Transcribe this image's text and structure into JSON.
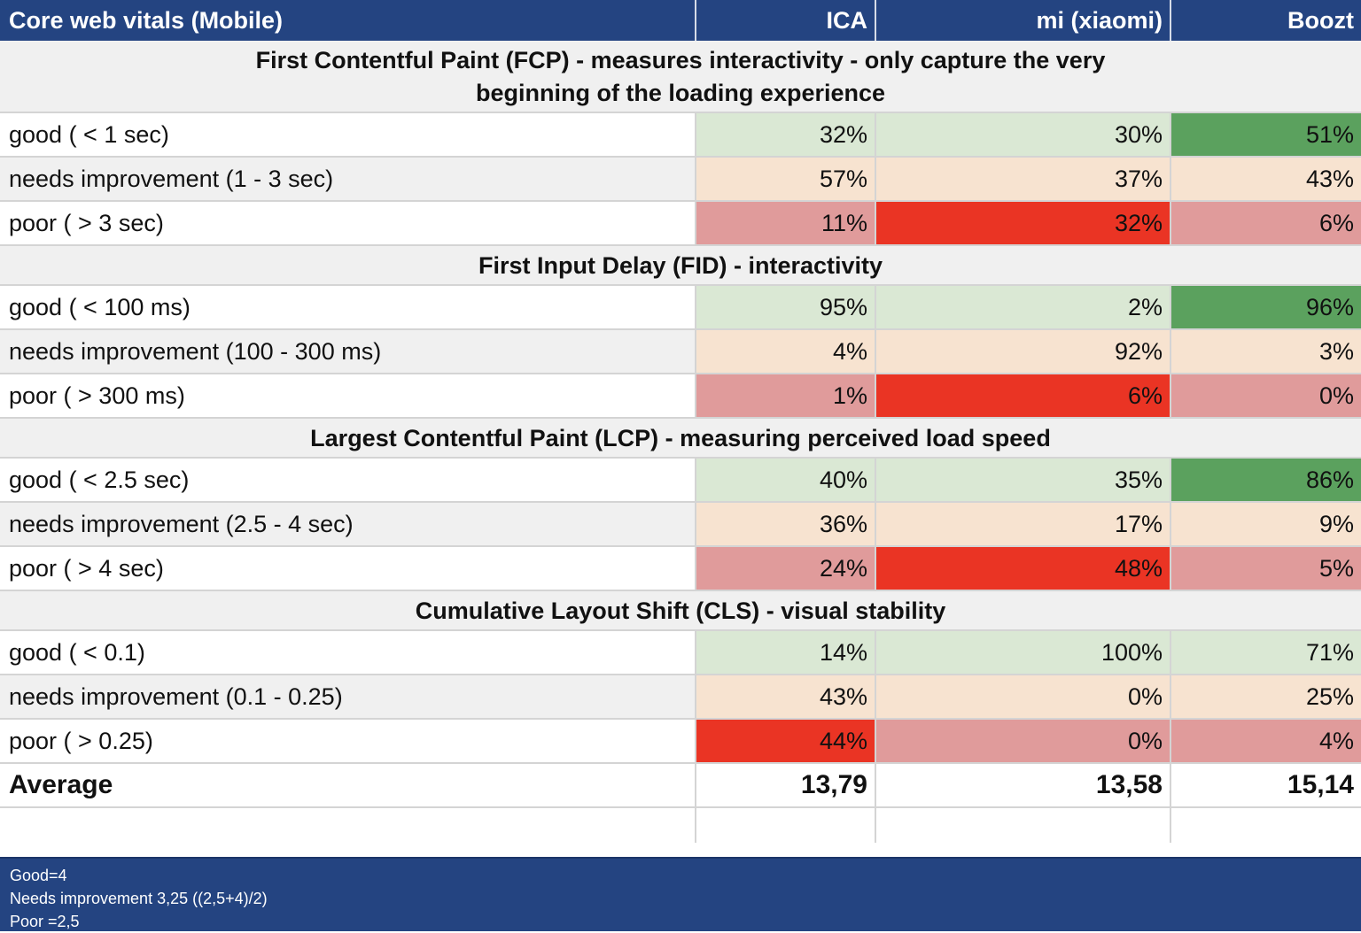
{
  "header": {
    "title": "Core web vitals (Mobile)",
    "columns": [
      "ICA",
      "mi (xiaomi)",
      "Boozt"
    ]
  },
  "sections": [
    {
      "title_line1": "First Contentful Paint (FCP) - measures interactivity - only capture the very",
      "title_line2": "beginning of the loading experience",
      "rows": [
        {
          "label": "good ( < 1 sec)",
          "values": [
            "32%",
            "30%",
            "51%"
          ]
        },
        {
          "label": "needs improvement (1 - 3 sec)",
          "values": [
            "57%",
            "37%",
            "43%"
          ]
        },
        {
          "label": "poor ( > 3 sec)",
          "values": [
            "11%",
            "32%",
            "6%"
          ]
        }
      ]
    },
    {
      "title_line1": "First Input Delay (FID) - interactivity",
      "rows": [
        {
          "label": "good ( < 100 ms)",
          "values": [
            "95%",
            "2%",
            "96%"
          ]
        },
        {
          "label": "needs improvement (100 - 300 ms)",
          "values": [
            "4%",
            "92%",
            "3%"
          ]
        },
        {
          "label": "poor ( > 300 ms)",
          "values": [
            "1%",
            "6%",
            "0%"
          ]
        }
      ]
    },
    {
      "title_line1": "Largest Contentful Paint (LCP) - measuring perceived load speed",
      "rows": [
        {
          "label": "good ( < 2.5 sec)",
          "values": [
            "40%",
            "35%",
            "86%"
          ]
        },
        {
          "label": "needs improvement (2.5 - 4 sec)",
          "values": [
            "36%",
            "17%",
            "9%"
          ]
        },
        {
          "label": "poor ( > 4 sec)",
          "values": [
            "24%",
            "48%",
            "5%"
          ]
        }
      ]
    },
    {
      "title_line1": "Cumulative Layout Shift (CLS) - visual stability",
      "rows": [
        {
          "label": "good ( < 0.1)",
          "values": [
            "14%",
            "100%",
            "71%"
          ]
        },
        {
          "label": "needs improvement (0.1 - 0.25)",
          "values": [
            "43%",
            "0%",
            "25%"
          ]
        },
        {
          "label": "poor ( > 0.25)",
          "values": [
            "44%",
            "0%",
            "4%"
          ]
        }
      ]
    }
  ],
  "average": {
    "label": "Average",
    "values": [
      "13,79",
      "13,58",
      "15,14"
    ]
  },
  "footer": {
    "lines": [
      "Good=4",
      "Needs improvement 3,25 ((2,5+4)/2)",
      "Poor =2,5"
    ]
  },
  "colors": {
    "header_bg": "#244481",
    "good_light": "#dae8d4",
    "good_strong": "#5ba15e",
    "needs_improvement": "#f7e3d0",
    "poor_light": "#e09b9b",
    "poor_strong": "#ea3424"
  }
}
